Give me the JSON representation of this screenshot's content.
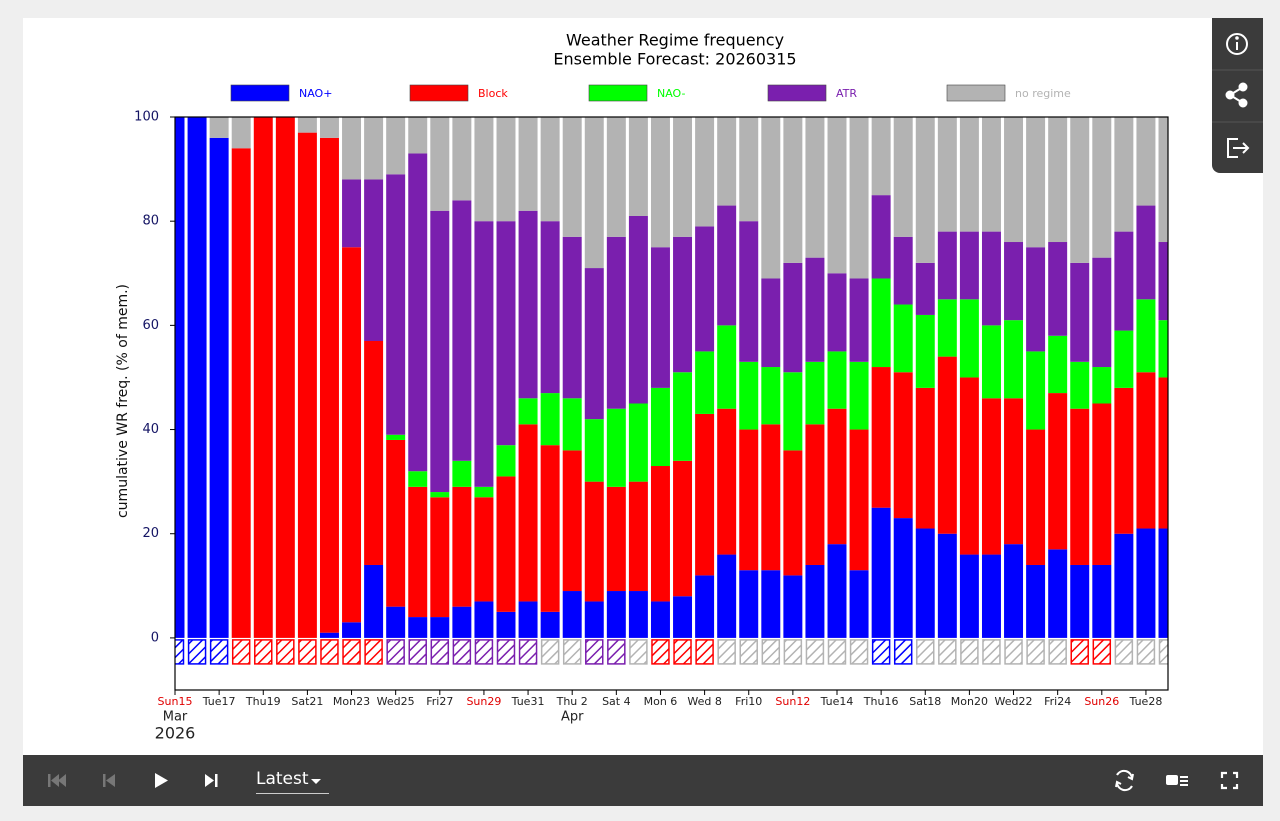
{
  "ui": {
    "dropdown": "Latest"
  },
  "chart_data": {
    "type": "stacked-bar",
    "title": "Weather Regime frequency",
    "subtitle": "Ensemble Forecast: 20260315",
    "ylabel": "cumulative WR freq. (% of mem.)",
    "ylim": [
      -10,
      100
    ],
    "yticks": [
      0,
      20,
      40,
      60,
      80,
      100
    ],
    "xlim": [
      "2026-03-15",
      "2026-04-29"
    ],
    "xticks": [
      {
        "value": "2026-03-15",
        "label": "Sun15"
      },
      {
        "value": "2026-03-17",
        "label": "Tue17"
      },
      {
        "value": "2026-03-19",
        "label": "Thu19"
      },
      {
        "value": "2026-03-21",
        "label": "Sat21"
      },
      {
        "value": "2026-03-23",
        "label": "Mon23"
      },
      {
        "value": "2026-03-25",
        "label": "Wed25"
      },
      {
        "value": "2026-03-27",
        "label": "Fri27"
      },
      {
        "value": "2026-03-29",
        "label": "Sun29"
      },
      {
        "value": "2026-03-31",
        "label": "Tue31"
      },
      {
        "value": "2026-04-02",
        "label": "Thu 2"
      },
      {
        "value": "2026-04-04",
        "label": "Sat 4"
      },
      {
        "value": "2026-04-06",
        "label": "Mon 6"
      },
      {
        "value": "2026-04-08",
        "label": "Wed 8"
      },
      {
        "value": "2026-04-10",
        "label": "Fri10"
      },
      {
        "value": "2026-04-12",
        "label": "Sun12"
      },
      {
        "value": "2026-04-14",
        "label": "Tue14"
      },
      {
        "value": "2026-04-16",
        "label": "Thu16"
      },
      {
        "value": "2026-04-18",
        "label": "Sat18"
      },
      {
        "value": "2026-04-20",
        "label": "Mon20"
      },
      {
        "value": "2026-04-22",
        "label": "Wed22"
      },
      {
        "value": "2026-04-24",
        "label": "Fri24"
      },
      {
        "value": "2026-04-26",
        "label": "Sun26"
      },
      {
        "value": "2026-04-28",
        "label": "Tue28"
      }
    ],
    "x_month_labels": [
      {
        "value": "2026-03-15",
        "label": "Mar"
      },
      {
        "value": "2026-04-02",
        "label": "Apr"
      }
    ],
    "x_year_label": {
      "value": "2026-03-15",
      "label": "2026"
    },
    "sunday_tick_color": "#e00000",
    "x": [
      "2026-03-15",
      "2026-03-16",
      "2026-03-17",
      "2026-03-18",
      "2026-03-19",
      "2026-03-20",
      "2026-03-21",
      "2026-03-22",
      "2026-03-23",
      "2026-03-24",
      "2026-03-25",
      "2026-03-26",
      "2026-03-27",
      "2026-03-28",
      "2026-03-29",
      "2026-03-30",
      "2026-03-31",
      "2026-04-01",
      "2026-04-02",
      "2026-04-03",
      "2026-04-04",
      "2026-04-05",
      "2026-04-06",
      "2026-04-07",
      "2026-04-08",
      "2026-04-09",
      "2026-04-10",
      "2026-04-11",
      "2026-04-12",
      "2026-04-13",
      "2026-04-14",
      "2026-04-15",
      "2026-04-16",
      "2026-04-17",
      "2026-04-18",
      "2026-04-19",
      "2026-04-20",
      "2026-04-21",
      "2026-04-22",
      "2026-04-23",
      "2026-04-24",
      "2026-04-25",
      "2026-04-26",
      "2026-04-27",
      "2026-04-28",
      "2026-04-29"
    ],
    "series": [
      {
        "name": "NAO+",
        "color": "#0000ff",
        "values": [
          100,
          100,
          96,
          0,
          0,
          0,
          0,
          1,
          3,
          14,
          6,
          4,
          4,
          6,
          7,
          5,
          7,
          5,
          9,
          7,
          9,
          9,
          7,
          8,
          12,
          16,
          13,
          13,
          12,
          14,
          18,
          13,
          25,
          23,
          21,
          20,
          16,
          16,
          18,
          14,
          17,
          14,
          14,
          20,
          21,
          21
        ]
      },
      {
        "name": "Block",
        "color": "#ff0000",
        "values": [
          0,
          0,
          0,
          94,
          100,
          100,
          97,
          95,
          72,
          43,
          32,
          25,
          23,
          23,
          20,
          26,
          34,
          32,
          27,
          23,
          20,
          21,
          26,
          26,
          31,
          28,
          27,
          28,
          24,
          27,
          26,
          27,
          27,
          28,
          27,
          34,
          34,
          30,
          28,
          26,
          30,
          30,
          31,
          28,
          30,
          29
        ]
      },
      {
        "name": "NAO-",
        "color": "#00ff00",
        "values": [
          0,
          0,
          0,
          0,
          0,
          0,
          0,
          0,
          0,
          0,
          1,
          3,
          1,
          5,
          2,
          6,
          5,
          10,
          10,
          12,
          15,
          15,
          15,
          17,
          12,
          16,
          13,
          11,
          15,
          12,
          11,
          13,
          17,
          13,
          14,
          11,
          15,
          14,
          15,
          15,
          11,
          9,
          7,
          11,
          14,
          11
        ]
      },
      {
        "name": "ATR",
        "color": "#7a1fae",
        "values": [
          0,
          0,
          0,
          0,
          0,
          0,
          0,
          0,
          13,
          31,
          50,
          61,
          54,
          50,
          51,
          43,
          36,
          33,
          31,
          29,
          33,
          36,
          27,
          26,
          24,
          23,
          27,
          17,
          21,
          20,
          15,
          16,
          16,
          13,
          10,
          13,
          13,
          18,
          15,
          20,
          18,
          19,
          21,
          19,
          18,
          15
        ]
      },
      {
        "name": "no regime",
        "color": "#b3b3b3",
        "values": [
          0,
          0,
          4,
          6,
          0,
          0,
          3,
          4,
          12,
          12,
          11,
          7,
          18,
          16,
          20,
          20,
          18,
          20,
          23,
          29,
          23,
          19,
          25,
          23,
          21,
          17,
          20,
          31,
          28,
          27,
          30,
          31,
          15,
          23,
          28,
          22,
          22,
          22,
          24,
          25,
          24,
          28,
          27,
          22,
          17,
          24
        ]
      }
    ],
    "dominant_regime": [
      "NAO+",
      "NAO+",
      "NAO+",
      "Block",
      "Block",
      "Block",
      "Block",
      "Block",
      "Block",
      "Block",
      "ATR",
      "ATR",
      "ATR",
      "ATR",
      "ATR",
      "ATR",
      "ATR",
      "no regime",
      "no regime",
      "ATR",
      "ATR",
      "no regime",
      "Block",
      "Block",
      "Block",
      "no regime",
      "no regime",
      "no regime",
      "no regime",
      "no regime",
      "no regime",
      "no regime",
      "NAO+",
      "NAO+",
      "no regime",
      "no regime",
      "no regime",
      "no regime",
      "no regime",
      "no regime",
      "no regime",
      "Block",
      "Block",
      "no regime",
      "no regime",
      "no regime"
    ]
  }
}
